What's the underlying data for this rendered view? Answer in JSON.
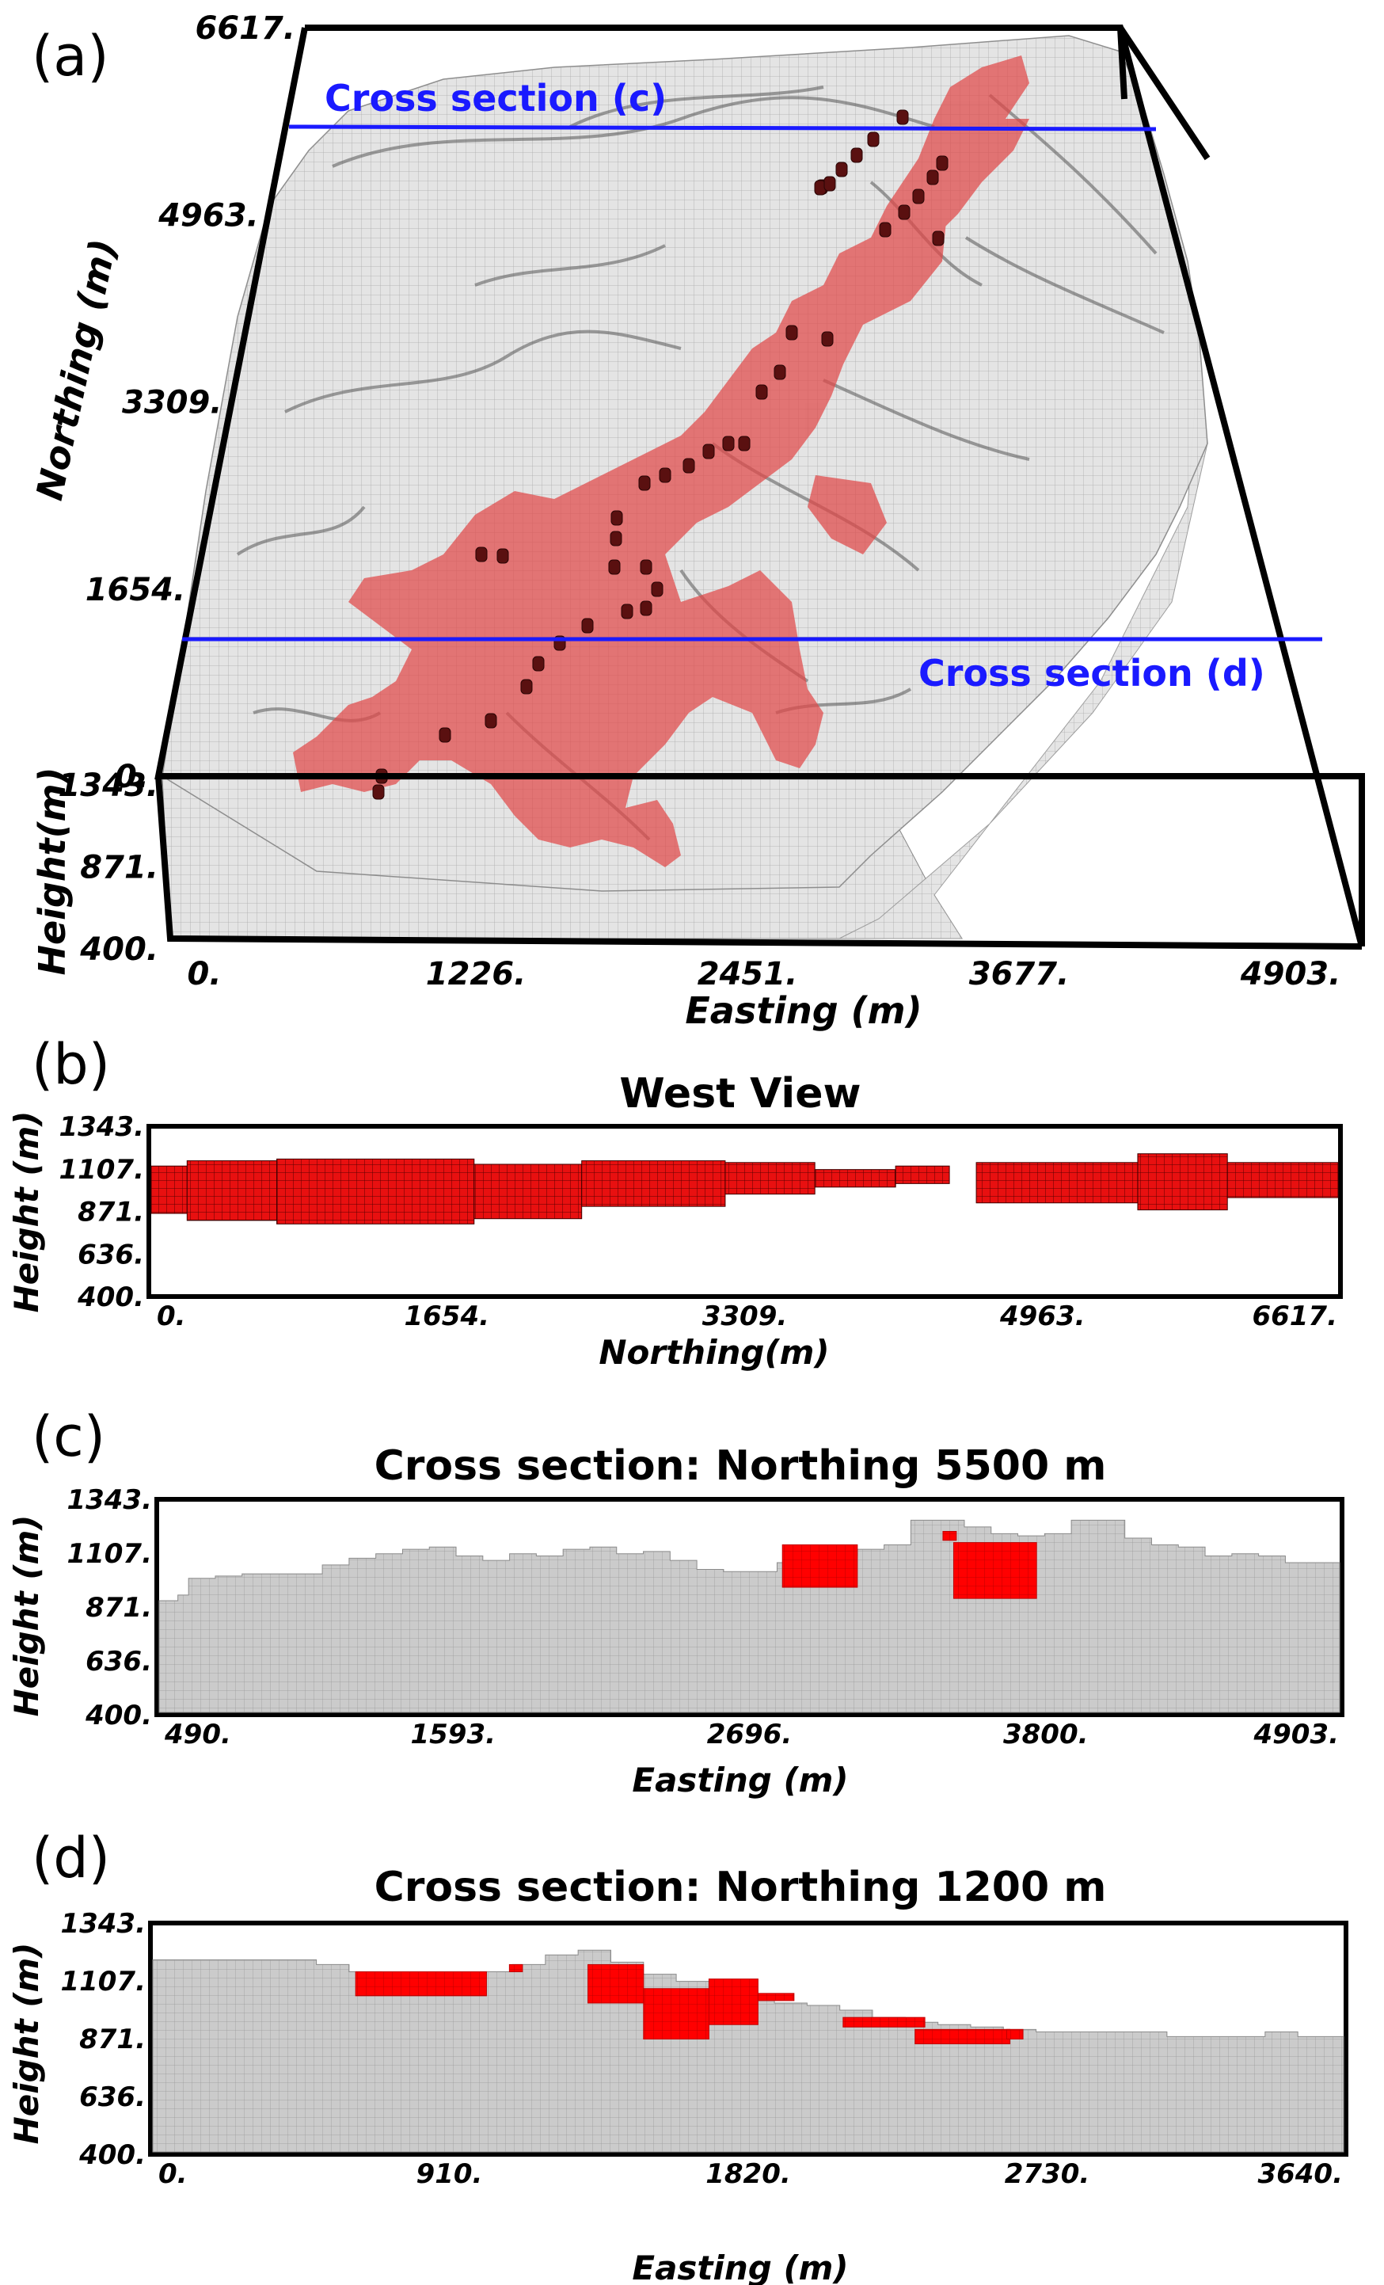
{
  "chart_data": [
    {
      "panel": "(a)",
      "type": "3d-voxel",
      "xlabel": "Easting (m)",
      "ylabel": "Northing (m)",
      "zlabel": "Height(m)",
      "xticks": [
        "0.",
        "1226.",
        "2451.",
        "3677.",
        "4903."
      ],
      "yticks": [
        "0.",
        "1654.",
        "3309.",
        "4963.",
        "6617."
      ],
      "zticks": [
        "400.",
        "871.",
        "1343."
      ],
      "xlim": [
        0,
        4903
      ],
      "ylim": [
        0,
        6617
      ],
      "zlim": [
        400,
        1343
      ],
      "annotations": [
        "Cross section (c)",
        "Cross section (d)"
      ],
      "colors": {
        "terrain": "#d9d9d9",
        "body": "#e05a5a",
        "wells": "#6b1414",
        "section_lines": "#1a1aff"
      }
    },
    {
      "panel": "(b)",
      "type": "heatmap",
      "title": "West View",
      "xlabel": "Northing(m)",
      "ylabel": "Height (m)",
      "xticks": [
        "0.",
        "1654.",
        "3309.",
        "4963.",
        "6617."
      ],
      "yticks": [
        "400.",
        "636.",
        "871.",
        "1107.",
        "1343."
      ],
      "xlim": [
        0,
        6617
      ],
      "ylim": [
        400,
        1343
      ],
      "cell_color": "#e81010",
      "extent": [
        {
          "from": 0,
          "to": 200,
          "top": 1130,
          "bottom": 860
        },
        {
          "from": 200,
          "to": 700,
          "top": 1160,
          "bottom": 820
        },
        {
          "from": 700,
          "to": 1800,
          "top": 1170,
          "bottom": 800
        },
        {
          "from": 1800,
          "to": 2400,
          "top": 1140,
          "bottom": 830
        },
        {
          "from": 2400,
          "to": 3200,
          "top": 1160,
          "bottom": 900
        },
        {
          "from": 3200,
          "to": 3700,
          "top": 1150,
          "bottom": 970
        },
        {
          "from": 3700,
          "to": 4150,
          "top": 1110,
          "bottom": 1010
        },
        {
          "from": 4150,
          "to": 4450,
          "top": 1130,
          "bottom": 1030
        },
        {
          "from": 4600,
          "to": 5500,
          "top": 1150,
          "bottom": 920
        },
        {
          "from": 5500,
          "to": 6000,
          "top": 1200,
          "bottom": 880
        },
        {
          "from": 6000,
          "to": 6617,
          "top": 1150,
          "bottom": 950
        }
      ]
    },
    {
      "panel": "(c)",
      "type": "heatmap",
      "title": "Cross section: Northing 5500 m",
      "xlabel": "Easting (m)",
      "ylabel": "Height (m)",
      "xticks": [
        "490.",
        "1593.",
        "2696.",
        "3800.",
        "4903."
      ],
      "yticks": [
        "400.",
        "636.",
        "871.",
        "1107.",
        "1343."
      ],
      "xlim": [
        490,
        4903
      ],
      "ylim": [
        400,
        1343
      ],
      "colors": {
        "terrain": "#c8c8c8",
        "body": "#ff0000"
      },
      "terrain_profile": {
        "x": [
          490,
          560,
          600,
          700,
          800,
          900,
          1000,
          1100,
          1200,
          1300,
          1400,
          1500,
          1600,
          1700,
          1800,
          1900,
          2000,
          2100,
          2200,
          2300,
          2400,
          2500,
          2600,
          2700,
          2800,
          2900,
          3000,
          3100,
          3200,
          3300,
          3400,
          3500,
          3600,
          3700,
          3800,
          3900,
          4000,
          4100,
          4200,
          4300,
          4400,
          4500,
          4600,
          4700,
          4800,
          4903
        ],
        "top": [
          900,
          925,
          1000,
          1010,
          1020,
          1020,
          1020,
          1060,
          1090,
          1110,
          1130,
          1140,
          1100,
          1080,
          1110,
          1100,
          1130,
          1140,
          1110,
          1120,
          1080,
          1040,
          1030,
          1030,
          1070,
          1110,
          1100,
          1130,
          1150,
          1260,
          1260,
          1230,
          1200,
          1190,
          1200,
          1260,
          1260,
          1180,
          1150,
          1140,
          1100,
          1110,
          1100,
          1070,
          1070,
          1020
        ]
      },
      "bodies": [
        {
          "x_from": 2820,
          "x_to": 3100,
          "top": 1150,
          "bottom": 960
        },
        {
          "x_from": 3420,
          "x_to": 3470,
          "top": 1210,
          "bottom": 1170
        },
        {
          "x_from": 3460,
          "x_to": 3770,
          "top": 1160,
          "bottom": 910
        }
      ]
    },
    {
      "panel": "(d)",
      "type": "heatmap",
      "title": "Cross section: Northing 1200 m",
      "xlabel": "Easting (m)",
      "ylabel": "Height (m)",
      "xticks": [
        "0.",
        "910.",
        "1820.",
        "2730.",
        "3640."
      ],
      "yticks": [
        "400.",
        "636.",
        "871.",
        "1107.",
        "1343."
      ],
      "xlim": [
        0,
        3640
      ],
      "ylim": [
        400,
        1343
      ],
      "colors": {
        "terrain": "#c8c8c8",
        "body": "#ff0000"
      },
      "terrain_profile": {
        "x": [
          0,
          400,
          500,
          600,
          700,
          800,
          900,
          1000,
          1100,
          1200,
          1300,
          1400,
          1500,
          1600,
          1700,
          1800,
          1900,
          2000,
          2100,
          2200,
          2300,
          2400,
          2500,
          2600,
          2700,
          2800,
          2900,
          3000,
          3100,
          3200,
          3300,
          3400,
          3500,
          3640
        ],
        "top": [
          1200,
          1200,
          1180,
          1150,
          1140,
          1140,
          1140,
          1150,
          1180,
          1220,
          1240,
          1190,
          1140,
          1110,
          1080,
          1050,
          1020,
          1010,
          990,
          960,
          940,
          930,
          920,
          910,
          900,
          900,
          900,
          900,
          880,
          880,
          880,
          900,
          880,
          880
        ]
      },
      "bodies": [
        {
          "x_from": 620,
          "x_to": 1020,
          "top": 1150,
          "bottom": 1050
        },
        {
          "x_from": 1090,
          "x_to": 1130,
          "top": 1180,
          "bottom": 1150
        },
        {
          "x_from": 1330,
          "x_to": 1500,
          "top": 1180,
          "bottom": 1020
        },
        {
          "x_from": 1500,
          "x_to": 1700,
          "top": 1080,
          "bottom": 870
        },
        {
          "x_from": 1700,
          "x_to": 1850,
          "top": 1120,
          "bottom": 930
        },
        {
          "x_from": 1850,
          "x_to": 1960,
          "top": 1060,
          "bottom": 1030
        },
        {
          "x_from": 2110,
          "x_to": 2360,
          "top": 960,
          "bottom": 920
        },
        {
          "x_from": 2330,
          "x_to": 2620,
          "top": 910,
          "bottom": 850
        },
        {
          "x_from": 2610,
          "x_to": 2660,
          "top": 910,
          "bottom": 870
        }
      ]
    }
  ]
}
